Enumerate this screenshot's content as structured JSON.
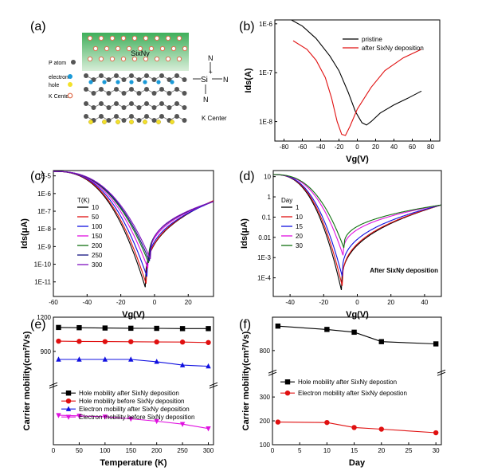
{
  "panels": {
    "a": {
      "label": "(a)",
      "film_label": "SixNy",
      "legend": [
        {
          "text": "P atom",
          "color": "#555555",
          "kind": "atom"
        },
        {
          "text": "electron",
          "color": "#1a9ad8",
          "kind": "electron"
        },
        {
          "text": "hole",
          "color": "#f3e12a",
          "kind": "hole"
        },
        {
          "text": "K Center",
          "color": "#f0a084",
          "kind": "kcenter"
        }
      ],
      "structure": {
        "center": "Si",
        "charge": "+",
        "ligand": "N",
        "caption": "K Center"
      }
    }
  },
  "chart_data": [
    {
      "id": "b",
      "label": "(b)",
      "type": "line",
      "xlabel": "Vg(V)",
      "ylabel": "Ids(A)",
      "xlim": [
        -90,
        90
      ],
      "ylim": [
        4e-09,
        1.2e-06
      ],
      "ylog": true,
      "xticks": [
        -80,
        -60,
        -40,
        -20,
        0,
        20,
        40,
        60,
        80
      ],
      "yticks": [
        {
          "v": 1e-08,
          "t": "1E-8"
        },
        {
          "v": 1e-07,
          "t": "1E-7"
        },
        {
          "v": 1e-06,
          "t": "1E-6"
        }
      ],
      "legend_pos": "top-right",
      "series": [
        {
          "name": "pristine",
          "color": "#000000",
          "x": [
            -72,
            -60,
            -45,
            -30,
            -20,
            -10,
            -2,
            5,
            10,
            15,
            25,
            40,
            55,
            70
          ],
          "y": [
            1.3e-06,
            9e-07,
            5e-07,
            2.2e-07,
            1.1e-07,
            4e-08,
            1.6e-08,
            9.5e-09,
            8.5e-09,
            1e-08,
            1.5e-08,
            2.2e-08,
            3e-08,
            4.2e-08
          ]
        },
        {
          "name": "after SixNy deposition",
          "color": "#e01010",
          "x": [
            -70,
            -55,
            -45,
            -35,
            -28,
            -22,
            -17,
            -13,
            -8,
            0,
            15,
            30,
            50,
            70
          ],
          "y": [
            4.5e-07,
            3e-07,
            1.8e-07,
            8e-08,
            3e-08,
            1e-08,
            5.5e-09,
            5.2e-09,
            8e-09,
            1.8e-08,
            5e-08,
            1.1e-07,
            2e-07,
            3e-07
          ]
        }
      ]
    },
    {
      "id": "c",
      "label": "(c)",
      "type": "line",
      "xlabel": "Vg(V)",
      "ylabel": "Ids(μA)",
      "xlim": [
        -60,
        35
      ],
      "ylim": [
        1.5e-12,
        2e-05
      ],
      "ylog": true,
      "xticks": [
        -60,
        -40,
        -20,
        0,
        20
      ],
      "yticks": [
        {
          "v": 1e-11,
          "t": "1E-11"
        },
        {
          "v": 1e-10,
          "t": "1E-10"
        },
        {
          "v": 1e-09,
          "t": "1E-9"
        },
        {
          "v": 1e-08,
          "t": "1E-8"
        },
        {
          "v": 1e-07,
          "t": "1E-7"
        },
        {
          "v": 1e-06,
          "t": "1E-6"
        },
        {
          "v": 1e-05,
          "t": "1E-5"
        }
      ],
      "legend_title": "T(K)",
      "series": [
        {
          "name": "10",
          "color": "#000000",
          "vmin": -5.5,
          "ymin": 5e-12
        },
        {
          "name": "50",
          "color": "#e01010",
          "vmin": -5.0,
          "ymin": 8e-12
        },
        {
          "name": "100",
          "color": "#1010e0",
          "vmin": -4.5,
          "ymin": 2e-11
        },
        {
          "name": "150",
          "color": "#e010e0",
          "vmin": -4.0,
          "ymin": 6e-11
        },
        {
          "name": "200",
          "color": "#107010",
          "vmin": -3.5,
          "ymin": 1.2e-10
        },
        {
          "name": "250",
          "color": "#101080",
          "vmin": -3.0,
          "ymin": 1.5e-10
        },
        {
          "name": "300",
          "color": "#8010c0",
          "vmin": -2.5,
          "ymin": 2e-10
        }
      ]
    },
    {
      "id": "d",
      "label": "(d)",
      "type": "line",
      "xlabel": "Vg(V)",
      "ylabel": "Ids(μA)",
      "xlim": [
        -50,
        50
      ],
      "ylim": [
        1.2e-05,
        20
      ],
      "ylog": true,
      "xticks": [
        -40,
        -20,
        0,
        20,
        40
      ],
      "yticks": [
        {
          "v": 0.0001,
          "t": "1E-4"
        },
        {
          "v": 0.001,
          "t": "1E-3"
        },
        {
          "v": 0.01,
          "t": "0.01"
        },
        {
          "v": 0.1,
          "t": "0.1"
        },
        {
          "v": 1,
          "t": "1"
        },
        {
          "v": 10,
          "t": "10"
        }
      ],
      "legend_title": "Day",
      "annotation": "After SixNy deposition",
      "series": [
        {
          "name": "1",
          "color": "#000000",
          "vmin": -9.5,
          "ymin": 2.5e-05
        },
        {
          "name": "10",
          "color": "#e01010",
          "vmin": -9.0,
          "ymin": 4e-05
        },
        {
          "name": "15",
          "color": "#1010e0",
          "vmin": -9.0,
          "ymin": 0.00012
        },
        {
          "name": "20",
          "color": "#e010e0",
          "vmin": -8.5,
          "ymin": 0.0013
        },
        {
          "name": "30",
          "color": "#107010",
          "vmin": -8.0,
          "ymin": 0.003
        }
      ]
    },
    {
      "id": "e",
      "label": "(e)",
      "type": "line",
      "xlabel": "Temperature (K)",
      "ylabel": "Carrier mobility(cm²/Vs)",
      "xlim": [
        0,
        310
      ],
      "xticks": [
        0,
        50,
        100,
        150,
        200,
        250,
        300
      ],
      "ybreak": {
        "upper": [
          640,
          1200
        ],
        "lower": [
          0,
          200
        ]
      },
      "yticks": [
        {
          "v": 900,
          "t": "900"
        },
        {
          "v": 1200,
          "t": "1200"
        }
      ],
      "series": [
        {
          "name": "Hole mobility after SixNy deposition",
          "color": "#000000",
          "marker": "square",
          "x": [
            10,
            50,
            100,
            150,
            200,
            250,
            300
          ],
          "y": [
            1110,
            1108,
            1105,
            1103,
            1102,
            1100,
            1100
          ]
        },
        {
          "name": "Hole mobility before SixNy deposition",
          "color": "#e01010",
          "marker": "circle",
          "x": [
            10,
            50,
            100,
            150,
            200,
            250,
            300
          ],
          "y": [
            990,
            988,
            986,
            985,
            983,
            982,
            978
          ]
        },
        {
          "name": "Electron mobility after SixNy deposition",
          "color": "#1010e0",
          "marker": "triangle",
          "x": [
            10,
            50,
            100,
            150,
            200,
            250,
            300
          ],
          "y": [
            830,
            830,
            830,
            830,
            810,
            780,
            770
          ]
        },
        {
          "name": "Electron mobility before SixNy deposition",
          "color": "#e010e0",
          "marker": "triangle-down",
          "x": [
            10,
            50,
            100,
            150,
            200,
            250,
            300
          ],
          "y": [
            100,
            98,
            95,
            88,
            80,
            70,
            55
          ]
        }
      ]
    },
    {
      "id": "f",
      "label": "(f)",
      "type": "line",
      "xlabel": "Day",
      "ylabel": "Carrier mobility(cm²/Vs)",
      "xlim": [
        0,
        31
      ],
      "xticks": [
        0,
        5,
        10,
        15,
        20,
        25,
        30
      ],
      "ybreak": {
        "upper": [
          640,
          1100
        ],
        "lower": [
          100,
          400
        ]
      },
      "yticks": [
        {
          "v": 100,
          "t": "100"
        },
        {
          "v": 200,
          "t": "200"
        },
        {
          "v": 300,
          "t": "300"
        },
        {
          "v": 800,
          "t": "800"
        }
      ],
      "series": [
        {
          "name": "Hole mobility after SixNy depostion",
          "color": "#000000",
          "marker": "square",
          "x": [
            1,
            10,
            15,
            20,
            30
          ],
          "y": [
            1020,
            990,
            965,
            880,
            860
          ]
        },
        {
          "name": "Electron mobility after SixNy depostion",
          "color": "#e01010",
          "marker": "circle",
          "x": [
            1,
            10,
            15,
            20,
            30
          ],
          "y": [
            195,
            193,
            172,
            165,
            150
          ]
        }
      ]
    }
  ]
}
